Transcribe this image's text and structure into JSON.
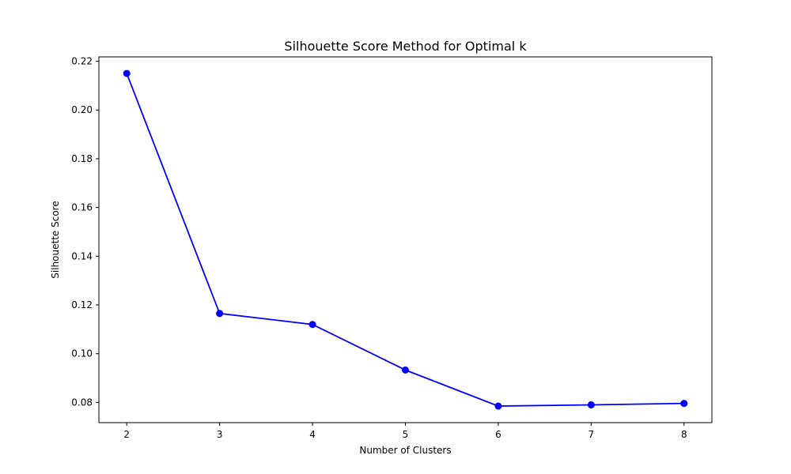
{
  "chart_data": {
    "type": "line",
    "title": "Silhouette Score Method for Optimal k",
    "xlabel": "Number of Clusters",
    "ylabel": "Silhouette Score",
    "x": [
      2,
      3,
      4,
      5,
      6,
      7,
      8
    ],
    "series": [
      {
        "values": [
          0.215,
          0.1165,
          0.112,
          0.0933,
          0.0785,
          0.079,
          0.0796
        ],
        "color": "#0000ff",
        "marker": "circle"
      }
    ],
    "xticks": [
      "2",
      "3",
      "4",
      "5",
      "6",
      "7",
      "8"
    ],
    "yticks": [
      "0.08",
      "0.10",
      "0.12",
      "0.14",
      "0.16",
      "0.18",
      "0.20",
      "0.22"
    ],
    "xlim": [
      1.7,
      8.3
    ],
    "ylim": [
      0.0717,
      0.2218
    ],
    "grid": false,
    "legend": "none"
  }
}
